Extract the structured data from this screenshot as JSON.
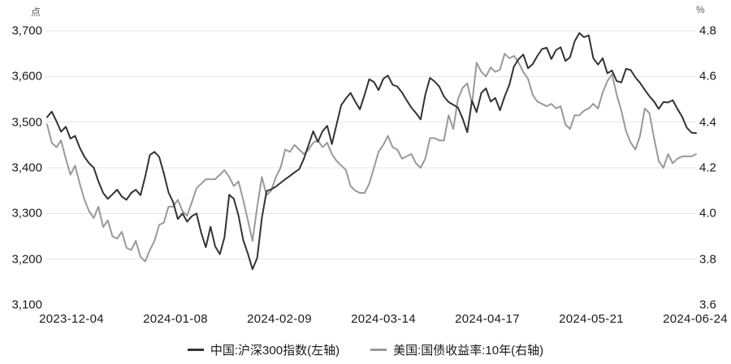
{
  "chart_data": {
    "type": "line",
    "title": "",
    "description": "Dual-axis daily line chart: CSI 300 Index (left axis, points) vs US 10-year Treasury yield (right axis, %), late Nov 2023 to 2024-06-24",
    "x_tick_labels": [
      "2023-12-04",
      "2024-01-08",
      "2024-02-09",
      "2024-03-14",
      "2024-04-17",
      "2024-05-21",
      "2024-06-24"
    ],
    "left_axis": {
      "unit": "点",
      "tick_labels": [
        "3,700",
        "3,600",
        "3,500",
        "3,400",
        "3,300",
        "3,200",
        "3,100"
      ],
      "ticks": [
        3700,
        3600,
        3500,
        3400,
        3300,
        3200,
        3100
      ],
      "lim": [
        3100,
        3700
      ]
    },
    "right_axis": {
      "unit": "%",
      "tick_labels": [
        "4.8",
        "4.6",
        "4.4",
        "4.2",
        "4.0",
        "3.8",
        "3.6"
      ],
      "ticks": [
        4.8,
        4.6,
        4.4,
        4.2,
        4.0,
        3.8,
        3.6
      ],
      "lim": [
        3.6,
        4.8
      ]
    },
    "grid": "horizontal gridlines at each left-axis tick except the minimum",
    "legend_position": "bottom-center",
    "series": [
      {
        "name": "中国:沪深300指数(左轴)",
        "axis": "left",
        "color": "#333333",
        "values": [
          3511,
          3523,
          3502,
          3479,
          3490,
          3464,
          3470,
          3444,
          3424,
          3410,
          3400,
          3370,
          3345,
          3332,
          3342,
          3352,
          3337,
          3330,
          3345,
          3352,
          3340,
          3380,
          3428,
          3435,
          3424,
          3388,
          3346,
          3325,
          3288,
          3300,
          3282,
          3294,
          3300,
          3258,
          3226,
          3271,
          3228,
          3211,
          3248,
          3341,
          3332,
          3295,
          3242,
          3212,
          3178,
          3203,
          3290,
          3349,
          3353,
          3359,
          3367,
          3375,
          3382,
          3390,
          3397,
          3420,
          3450,
          3480,
          3457,
          3480,
          3492,
          3452,
          3495,
          3537,
          3552,
          3564,
          3545,
          3528,
          3560,
          3594,
          3588,
          3570,
          3595,
          3602,
          3582,
          3578,
          3565,
          3548,
          3532,
          3520,
          3506,
          3560,
          3597,
          3589,
          3578,
          3556,
          3544,
          3538,
          3532,
          3508,
          3478,
          3547,
          3522,
          3564,
          3574,
          3545,
          3553,
          3526,
          3556,
          3582,
          3622,
          3638,
          3648,
          3618,
          3627,
          3645,
          3660,
          3663,
          3638,
          3658,
          3664,
          3634,
          3642,
          3677,
          3695,
          3686,
          3690,
          3640,
          3626,
          3640,
          3607,
          3613,
          3590,
          3587,
          3617,
          3614,
          3598,
          3586,
          3571,
          3557,
          3545,
          3529,
          3544,
          3543,
          3548,
          3529,
          3512,
          3488,
          3477,
          3476
        ]
      },
      {
        "name": "美国:国债收益率:10年(右轴)",
        "axis": "right",
        "color": "#999999",
        "values": [
          4.39,
          4.31,
          4.29,
          4.32,
          4.24,
          4.17,
          4.21,
          4.13,
          4.06,
          4.01,
          3.98,
          4.03,
          3.94,
          3.97,
          3.9,
          3.89,
          3.92,
          3.85,
          3.84,
          3.88,
          3.81,
          3.79,
          3.84,
          3.88,
          3.95,
          3.96,
          4.03,
          4.03,
          4.06,
          4.01,
          3.99,
          4.05,
          4.11,
          4.13,
          4.15,
          4.15,
          4.15,
          4.17,
          4.19,
          4.16,
          4.12,
          4.14,
          4.06,
          3.97,
          3.88,
          4.03,
          4.16,
          4.08,
          4.1,
          4.16,
          4.2,
          4.28,
          4.27,
          4.3,
          4.28,
          4.26,
          4.28,
          4.31,
          4.32,
          4.29,
          4.31,
          4.26,
          4.23,
          4.21,
          4.19,
          4.12,
          4.1,
          4.09,
          4.09,
          4.13,
          4.2,
          4.27,
          4.3,
          4.34,
          4.29,
          4.28,
          4.24,
          4.25,
          4.26,
          4.22,
          4.2,
          4.24,
          4.33,
          4.33,
          4.32,
          4.32,
          4.43,
          4.37,
          4.5,
          4.55,
          4.57,
          4.48,
          4.66,
          4.62,
          4.6,
          4.64,
          4.62,
          4.63,
          4.7,
          4.68,
          4.69,
          4.66,
          4.62,
          4.59,
          4.52,
          4.49,
          4.48,
          4.47,
          4.48,
          4.46,
          4.47,
          4.39,
          4.37,
          4.43,
          4.43,
          4.45,
          4.46,
          4.48,
          4.46,
          4.53,
          4.58,
          4.61,
          4.52,
          4.45,
          4.36,
          4.31,
          4.28,
          4.34,
          4.46,
          4.44,
          4.33,
          4.23,
          4.2,
          4.26,
          4.22,
          4.24,
          4.25,
          4.25,
          4.25,
          4.26
        ]
      }
    ],
    "colors": {
      "background": "#ffffff",
      "gridline": "#e4e4e4",
      "tick_text": "#1a1a1a",
      "unit_text": "#595959"
    }
  }
}
